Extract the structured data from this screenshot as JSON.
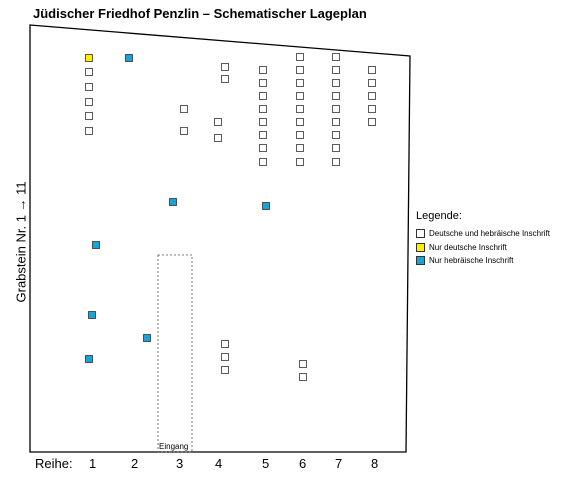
{
  "title": "Jüdischer Friedhof Penzlin – Schematischer Lageplan",
  "ylabel": "Grabstein Nr. 1 → 11",
  "row_axis": {
    "label": "Reihe:",
    "rows": [
      "1",
      "2",
      "3",
      "4",
      "5",
      "6",
      "7",
      "8"
    ]
  },
  "entrance_label": "Eingang",
  "legend": {
    "title": "Legende:",
    "items": [
      {
        "label": "Deutsche und hebräische Inschrift",
        "color": "#ffffff"
      },
      {
        "label": "Nur deutsche Inschrift",
        "color": "#ffee00"
      },
      {
        "label": "Nur hebräische Inschrift",
        "color": "#1aa3d9"
      }
    ]
  },
  "colors": {
    "both": "#ffffff",
    "german": "#ffee00",
    "hebrew": "#1aa3d9",
    "outline": "#333333"
  }
}
